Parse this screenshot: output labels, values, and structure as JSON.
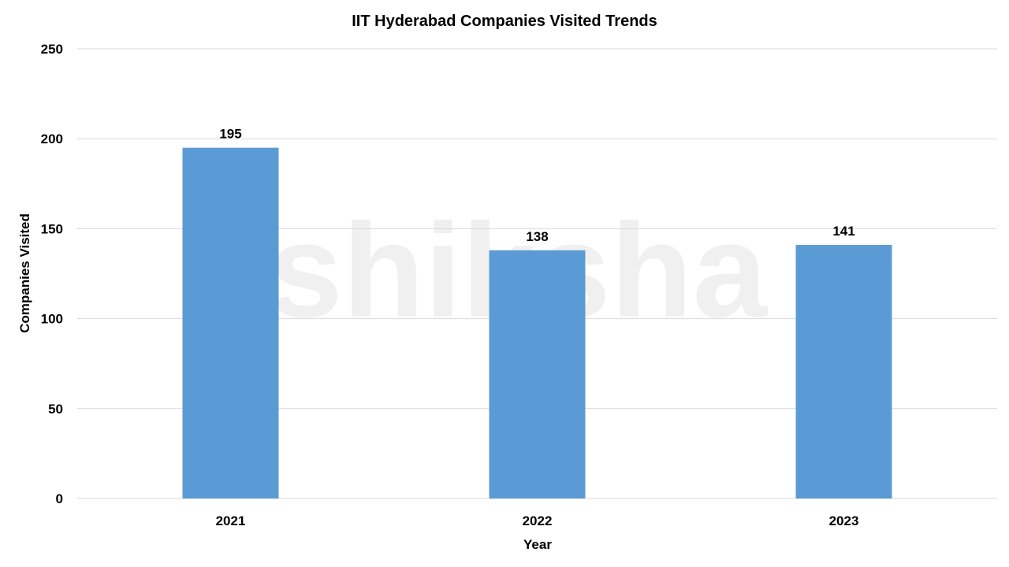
{
  "chart_data": {
    "type": "bar",
    "title": "IIT Hyderabad Companies Visited Trends",
    "xlabel": "Year",
    "ylabel": "Companies Visited",
    "categories": [
      "2021",
      "2022",
      "2023"
    ],
    "values": [
      195,
      138,
      141
    ],
    "data_labels": [
      "195",
      "138",
      "141"
    ],
    "ylim": [
      0,
      250
    ],
    "yticks": [
      "0",
      "50",
      "100",
      "150",
      "200",
      "250"
    ],
    "grid": true,
    "legend": "none",
    "bar_color": "#5B9BD5",
    "grid_color": "#D9D9D9"
  },
  "watermark": "shiksha"
}
